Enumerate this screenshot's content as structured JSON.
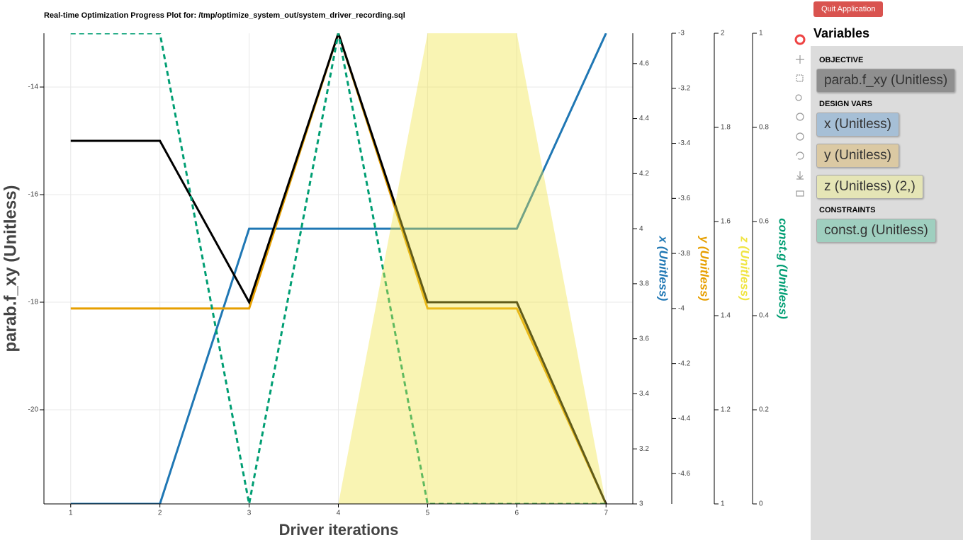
{
  "chart_data": {
    "type": "line",
    "title": "Real-time Optimization Progress Plot for: /tmp/optimize_system_out/system_driver_recording.sql",
    "xlabel": "Driver iterations",
    "x": [
      1,
      2,
      3,
      4,
      5,
      6,
      7
    ],
    "xlim": [
      0.7,
      7.3
    ],
    "xticks": [
      1,
      2,
      3,
      4,
      5,
      6,
      7
    ],
    "grid": true,
    "y_axes": [
      {
        "label": "parab.f_xy (Unitless)",
        "color": "#444444",
        "ylim": [
          -21.75,
          -13
        ],
        "yticks": [
          -20,
          -18,
          -16,
          -14
        ]
      },
      {
        "label": "x (Unitless)",
        "color": "#1f77b4",
        "ylim": [
          3,
          4.71
        ],
        "yticks": [
          3,
          3.2,
          3.4,
          3.6,
          3.8,
          4,
          4.2,
          4.4,
          4.6
        ]
      },
      {
        "label": "y (Unitless)",
        "color": "#e69f00",
        "ylim": [
          -4.71,
          -3
        ],
        "yticks": [
          -4.6,
          -4.4,
          -4.2,
          -4,
          -3.8,
          -3.6,
          -3.4,
          -3.2,
          -3
        ]
      },
      {
        "label": "z (Unitless)",
        "color": "#f0e442",
        "ylim": [
          1,
          2
        ],
        "yticks": [
          1,
          1.2,
          1.4,
          1.6,
          1.8,
          2
        ]
      },
      {
        "label": "const.g (Unitless)",
        "color": "#009e73",
        "ylim": [
          0,
          1
        ],
        "yticks": [
          0,
          0.2,
          0.4,
          0.6,
          0.8,
          1
        ]
      }
    ],
    "series": [
      {
        "axis": 1,
        "style": "solid",
        "color": "#1f77b4",
        "values": [
          3,
          3,
          4,
          4,
          4,
          4,
          4.71
        ]
      },
      {
        "axis": 2,
        "style": "solid",
        "color": "#e69f00",
        "values": [
          -4,
          -4,
          -4,
          -3,
          -4,
          -4,
          -4.71
        ]
      },
      {
        "axis": 0,
        "style": "solid",
        "color": "#000000",
        "values": [
          -15,
          -15,
          -18,
          -13,
          -18,
          -18,
          -21.75
        ]
      },
      {
        "axis": 4,
        "style": "dashed",
        "color": "#009e73",
        "values": [
          1,
          1,
          0,
          1,
          0,
          0,
          0
        ]
      },
      {
        "axis": 3,
        "style": "area",
        "color": "#f0e442",
        "values": [
          1,
          1,
          1,
          1,
          2,
          2,
          1
        ],
        "lower": [
          1,
          1,
          1,
          1,
          1,
          1,
          1
        ]
      }
    ]
  },
  "sidebar": {
    "quit_button": "Quit Application",
    "heading": "Variables",
    "sections": [
      {
        "title": "OBJECTIVE",
        "items": [
          {
            "label": "parab.f_xy (Unitless)",
            "color": "#8f8f8f"
          }
        ]
      },
      {
        "title": "DESIGN VARS",
        "items": [
          {
            "label": "x (Unitless)",
            "color": "#a6bfd6"
          },
          {
            "label": "y (Unitless)",
            "color": "#dbc9a3"
          },
          {
            "label": "z (Unitless) (2,)",
            "color": "#e5e5b6"
          }
        ]
      },
      {
        "title": "CONSTRAINTS",
        "items": [
          {
            "label": "const.g (Unitless)",
            "color": "#9fcfbf"
          }
        ]
      }
    ]
  }
}
